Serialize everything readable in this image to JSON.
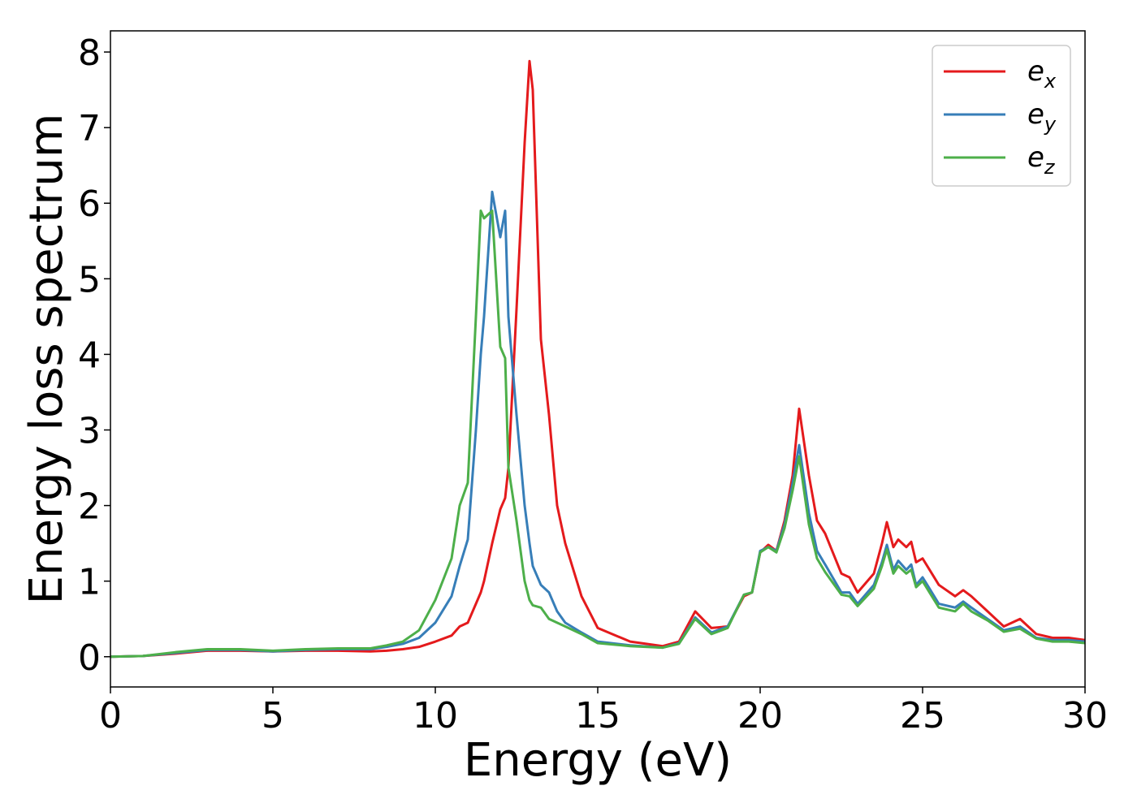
{
  "chart_data": {
    "type": "line",
    "xlabel": "Energy (eV)",
    "ylabel": "Energy loss spectrum",
    "x": [
      0,
      1,
      2,
      3,
      4,
      5,
      6,
      7,
      8,
      8.5,
      9,
      9.5,
      10,
      10.5,
      10.75,
      11,
      11.25,
      11.4,
      11.5,
      11.75,
      12,
      12.15,
      12.25,
      12.5,
      12.75,
      12.9,
      13,
      13.25,
      13.5,
      13.75,
      14,
      14.5,
      15,
      16,
      17,
      17.5,
      18,
      18.5,
      19,
      19.5,
      19.75,
      20,
      20.25,
      20.5,
      20.75,
      21,
      21.2,
      21.5,
      21.75,
      22,
      22.5,
      22.75,
      23,
      23.5,
      23.75,
      23.9,
      24.1,
      24.25,
      24.5,
      24.65,
      24.8,
      25,
      25.5,
      26,
      26.25,
      26.5,
      27,
      27.5,
      28,
      28.5,
      29,
      29.5,
      30
    ],
    "series": [
      {
        "name": "ex",
        "color": "#e41a1c",
        "values": [
          0,
          0.01,
          0.04,
          0.08,
          0.08,
          0.07,
          0.08,
          0.08,
          0.07,
          0.08,
          0.1,
          0.13,
          0.2,
          0.28,
          0.4,
          0.45,
          0.7,
          0.85,
          1.0,
          1.5,
          1.95,
          2.1,
          2.5,
          4.6,
          6.8,
          7.88,
          7.5,
          4.2,
          3.2,
          2.0,
          1.5,
          0.8,
          0.38,
          0.2,
          0.14,
          0.2,
          0.6,
          0.38,
          0.4,
          0.8,
          0.85,
          1.38,
          1.48,
          1.4,
          1.8,
          2.4,
          3.28,
          2.4,
          1.8,
          1.63,
          1.1,
          1.05,
          0.85,
          1.1,
          1.5,
          1.78,
          1.45,
          1.55,
          1.45,
          1.52,
          1.25,
          1.3,
          0.95,
          0.8,
          0.88,
          0.8,
          0.6,
          0.4,
          0.5,
          0.3,
          0.25,
          0.25,
          0.22
        ]
      },
      {
        "name": "ey",
        "color": "#377eb8",
        "values": [
          0,
          0.01,
          0.05,
          0.09,
          0.09,
          0.07,
          0.09,
          0.1,
          0.1,
          0.13,
          0.17,
          0.25,
          0.45,
          0.8,
          1.2,
          1.55,
          3.0,
          4.0,
          4.5,
          6.15,
          5.55,
          5.9,
          4.5,
          3.2,
          2.0,
          1.5,
          1.2,
          0.95,
          0.85,
          0.6,
          0.45,
          0.32,
          0.2,
          0.15,
          0.12,
          0.18,
          0.52,
          0.32,
          0.4,
          0.82,
          0.85,
          1.4,
          1.45,
          1.4,
          1.75,
          2.3,
          2.8,
          1.9,
          1.4,
          1.22,
          0.85,
          0.85,
          0.7,
          0.95,
          1.25,
          1.48,
          1.15,
          1.27,
          1.15,
          1.22,
          0.95,
          1.05,
          0.7,
          0.65,
          0.73,
          0.65,
          0.5,
          0.35,
          0.4,
          0.25,
          0.22,
          0.22,
          0.2
        ]
      },
      {
        "name": "ez",
        "color": "#4daf4a",
        "values": [
          0,
          0.01,
          0.06,
          0.1,
          0.1,
          0.08,
          0.1,
          0.11,
          0.11,
          0.15,
          0.2,
          0.35,
          0.75,
          1.3,
          2.0,
          2.3,
          4.5,
          5.9,
          5.8,
          5.9,
          4.1,
          3.95,
          2.5,
          1.8,
          1.0,
          0.75,
          0.68,
          0.65,
          0.5,
          0.45,
          0.4,
          0.3,
          0.18,
          0.14,
          0.12,
          0.17,
          0.5,
          0.3,
          0.38,
          0.82,
          0.85,
          1.38,
          1.45,
          1.38,
          1.7,
          2.2,
          2.65,
          1.75,
          1.3,
          1.12,
          0.82,
          0.8,
          0.67,
          0.9,
          1.2,
          1.42,
          1.1,
          1.2,
          1.1,
          1.15,
          0.92,
          1.0,
          0.65,
          0.6,
          0.7,
          0.6,
          0.48,
          0.33,
          0.37,
          0.24,
          0.2,
          0.2,
          0.18
        ]
      }
    ],
    "xlim": [
      0,
      30
    ],
    "xticks": [
      0,
      5,
      10,
      15,
      20,
      25,
      30
    ],
    "ylim": [
      -0.4,
      8.28
    ],
    "yticks": [
      0,
      1,
      2,
      3,
      4,
      5,
      6,
      7,
      8
    ],
    "legend": "upper right",
    "grid": false
  }
}
